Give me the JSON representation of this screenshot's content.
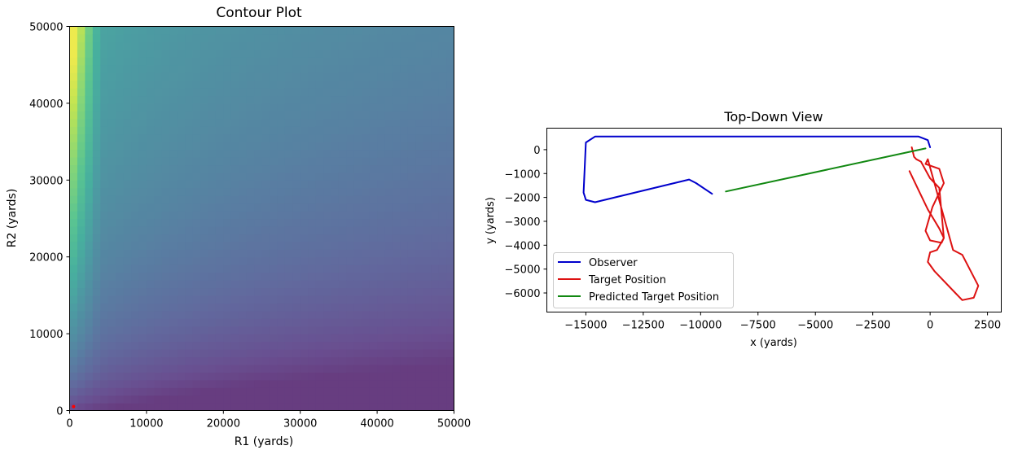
{
  "chart_data": [
    {
      "type": "heatmap",
      "title": "Contour Plot",
      "xlabel": "R1 (yards)",
      "ylabel": "R2 (yards)",
      "xlim": [
        0,
        50000
      ],
      "ylim": [
        0,
        50000
      ],
      "xticks": [
        "0",
        "10000",
        "20000",
        "30000",
        "40000",
        "50000"
      ],
      "yticks": [
        "0",
        "10000",
        "20000",
        "30000",
        "40000",
        "50000"
      ],
      "xtick_values": [
        0,
        10000,
        20000,
        30000,
        40000,
        50000
      ],
      "ytick_values": [
        0,
        10000,
        20000,
        30000,
        40000,
        50000
      ],
      "colormap": "viridis",
      "marker": {
        "x": 300,
        "y": 300,
        "color": "#ff0000"
      }
    },
    {
      "type": "line",
      "title": "Top-Down View",
      "xlabel": "x (yards)",
      "ylabel": "y (yards)",
      "xlim": [
        -16700,
        3100
      ],
      "ylim": [
        -6800,
        900
      ],
      "xticks": [
        "−15000",
        "−12500",
        "−10000",
        "−7500",
        "−5000",
        "−2500",
        "0",
        "2500"
      ],
      "xtick_values": [
        -15000,
        -12500,
        -10000,
        -7500,
        -5000,
        -2500,
        0,
        2500
      ],
      "yticks": [
        "0",
        "−1000",
        "−2000",
        "−3000",
        "−4000",
        "−5000",
        "−6000"
      ],
      "ytick_values": [
        0,
        -1000,
        -2000,
        -3000,
        -4000,
        -5000,
        -6000
      ],
      "legend_position": "lower-left",
      "series": [
        {
          "name": "Observer",
          "color": "#0000cc",
          "x": [
            -9500,
            -10200,
            -10500,
            -14600,
            -15000,
            -15100,
            -15000,
            -14600,
            -500,
            -100,
            0
          ],
          "y": [
            -1850,
            -1400,
            -1250,
            -2200,
            -2100,
            -1800,
            300,
            550,
            550,
            400,
            100
          ]
        },
        {
          "name": "Target Position",
          "color": "#dd1111",
          "x": [
            -900,
            -500,
            -100,
            400,
            600,
            500,
            0,
            -200,
            100,
            600,
            400,
            -200,
            -100,
            1000,
            1400,
            2100,
            1900,
            1400,
            1100,
            200,
            -100,
            0,
            300,
            600,
            400,
            0,
            -400,
            -600,
            -700,
            -800
          ],
          "y": [
            -900,
            -1700,
            -2500,
            -3300,
            -3700,
            -3900,
            -3800,
            -3400,
            -2400,
            -1400,
            -800,
            -600,
            -400,
            -4200,
            -4400,
            -5700,
            -6200,
            -6300,
            -6000,
            -5100,
            -4700,
            -4300,
            -4200,
            -3700,
            -1600,
            -1200,
            -500,
            -400,
            -300,
            100
          ]
        },
        {
          "name": "Predicted Target Position",
          "color": "#118811",
          "x": [
            -8900,
            -200
          ],
          "y": [
            -1750,
            50
          ]
        }
      ]
    }
  ]
}
